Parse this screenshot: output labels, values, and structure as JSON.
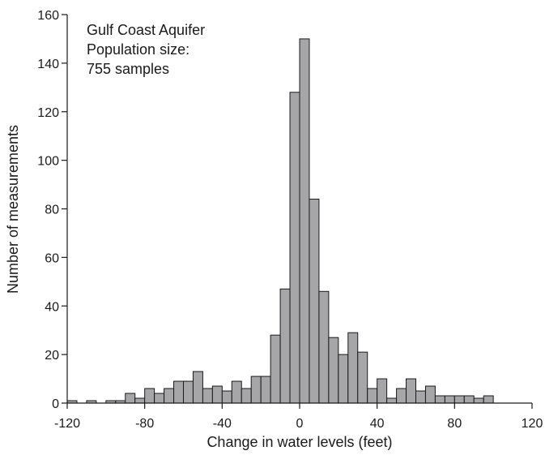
{
  "chart_data": {
    "type": "bar",
    "annotation": [
      "Gulf Coast Aquifer",
      "Population size:",
      "755 samples"
    ],
    "xlabel": "Change in water levels (feet)",
    "ylabel": "Number of measurements",
    "xlim": [
      -120,
      120
    ],
    "ylim": [
      0,
      160
    ],
    "xticks": [
      -120,
      -80,
      -40,
      0,
      40,
      80,
      120
    ],
    "yticks": [
      0,
      20,
      40,
      60,
      80,
      100,
      120,
      140,
      160
    ],
    "bin_width": 5,
    "bin_starts": [
      -120,
      -115,
      -110,
      -105,
      -100,
      -95,
      -90,
      -85,
      -80,
      -75,
      -70,
      -65,
      -60,
      -55,
      -50,
      -45,
      -40,
      -35,
      -30,
      -25,
      -20,
      -15,
      -10,
      -5,
      0,
      5,
      10,
      15,
      20,
      25,
      30,
      35,
      40,
      45,
      50,
      55,
      60,
      65,
      70,
      75,
      80,
      85,
      90,
      95
    ],
    "values": [
      1,
      0,
      1,
      0,
      1,
      1,
      4,
      2,
      6,
      4,
      6,
      9,
      9,
      13,
      6,
      7,
      5,
      9,
      6,
      11,
      11,
      28,
      47,
      128,
      150,
      84,
      46,
      27,
      20,
      29,
      21,
      6,
      10,
      2,
      6,
      10,
      5,
      7,
      3,
      3,
      3,
      3,
      2,
      3
    ],
    "grid": false,
    "colors": {
      "bar_fill": "#a6a6a8",
      "bar_stroke": "#1a1a1a"
    }
  }
}
